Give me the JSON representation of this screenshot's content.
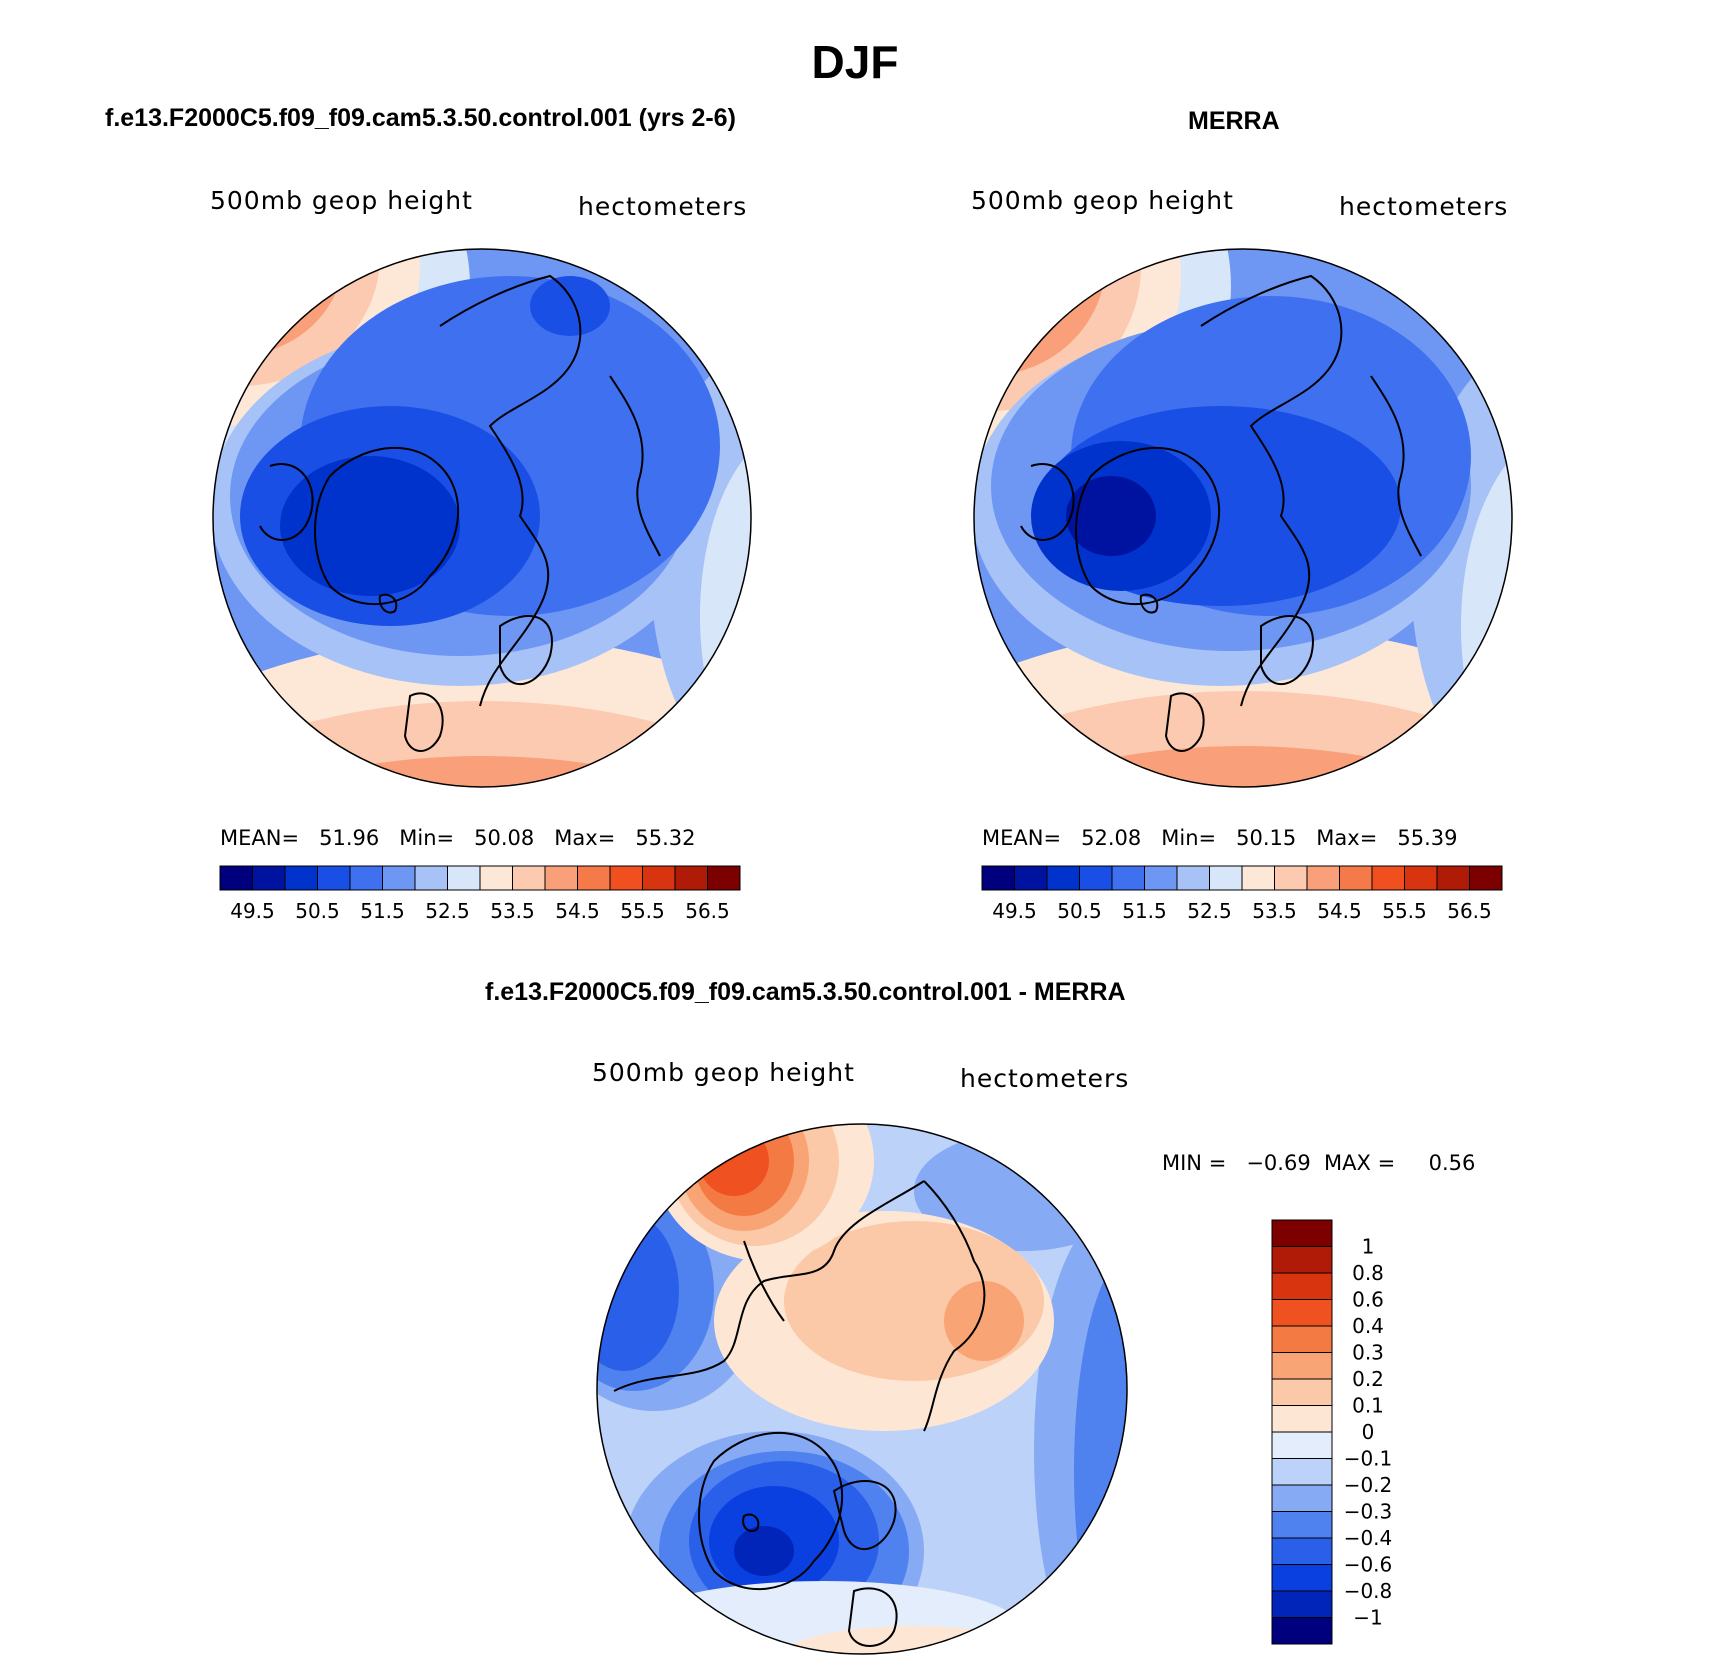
{
  "main_title": "DJF",
  "panels": [
    {
      "title": "f.e13.F2000C5.f09_f09.cam5.3.50.control.001 (yrs 2-6)",
      "variable": "500mb  geop  height",
      "units": "hectometers",
      "stats": {
        "mean_label": "MEAN=",
        "mean": "51.96",
        "min_label": "Min=",
        "min": "50.08",
        "max_label": "Max=",
        "max": "55.32"
      }
    },
    {
      "title": "MERRA",
      "variable": "500mb  geop  height",
      "units": "hectometers",
      "stats": {
        "mean_label": "MEAN=",
        "mean": "52.08",
        "min_label": "Min=",
        "min": "50.15",
        "max_label": "Max=",
        "max": "55.39"
      }
    },
    {
      "title": "f.e13.F2000C5.f09_f09.cam5.3.50.control.001 - MERRA",
      "variable": "500mb  geop  height",
      "units": "hectometers",
      "stats": {
        "min_label": "MIN =",
        "min": "−0.69",
        "max_label": "MAX =",
        "max": "0.56"
      }
    }
  ],
  "abs_colorbar": {
    "colors": [
      "#00007f",
      "#0012a0",
      "#0033cc",
      "#1a4fe6",
      "#3f70f0",
      "#6e96f3",
      "#a6c2f7",
      "#d8e6fa",
      "#fde8d8",
      "#fccab0",
      "#f9a07a",
      "#f57a4a",
      "#f0501f",
      "#d8340f",
      "#b01b08",
      "#7d0000"
    ],
    "labels": [
      "49.5",
      "50.5",
      "51.5",
      "52.5",
      "53.5",
      "54.5",
      "55.5",
      "56.5"
    ]
  },
  "diff_colorbar": {
    "colors": [
      "#00007f",
      "#0025b8",
      "#0a3fe0",
      "#2a5fea",
      "#4f82ef",
      "#86aaf4",
      "#bdd2f8",
      "#e4edfb",
      "#fde7d4",
      "#fbc8a8",
      "#f8a474",
      "#f47a44",
      "#ef5220",
      "#d8340f",
      "#b01b08",
      "#7d0000"
    ],
    "labels": [
      "1",
      "0.8",
      "0.6",
      "0.4",
      "0.3",
      "0.2",
      "0.1",
      "0",
      "−0.1",
      "−0.2",
      "−0.3",
      "−0.4",
      "−0.6",
      "−0.8",
      "−1"
    ]
  },
  "map_fields": {
    "panel1": {
      "background": "#3f70f0",
      "lows": [
        {
          "level": "#1a4fe6",
          "at": "canada-archipelago"
        },
        {
          "level": "#0033cc",
          "at": "greenland"
        }
      ],
      "highs": [
        {
          "level": "#f0501f",
          "at": "atlantic-europe"
        },
        {
          "level": "#f9a07a",
          "at": "pacific"
        }
      ]
    },
    "panel2": {
      "background": "#3f70f0",
      "lows": [
        {
          "level": "#0033cc",
          "at": "canada-archipelago"
        },
        {
          "level": "#1a4fe6",
          "at": "siberia"
        }
      ],
      "highs": [
        {
          "level": "#f0501f",
          "at": "atlantic-europe"
        },
        {
          "level": "#f57a4a",
          "at": "pacific"
        }
      ]
    },
    "panel3": {
      "background": "#bdd2f8",
      "lows": [
        {
          "level": "#0a3fe0",
          "at": "iceland"
        },
        {
          "level": "#2a5fea",
          "at": "north-pacific"
        }
      ],
      "highs": [
        {
          "level": "#ef5220",
          "at": "alaska-bering"
        },
        {
          "level": "#fbc8a8",
          "at": "arctic-siberia"
        }
      ]
    }
  }
}
